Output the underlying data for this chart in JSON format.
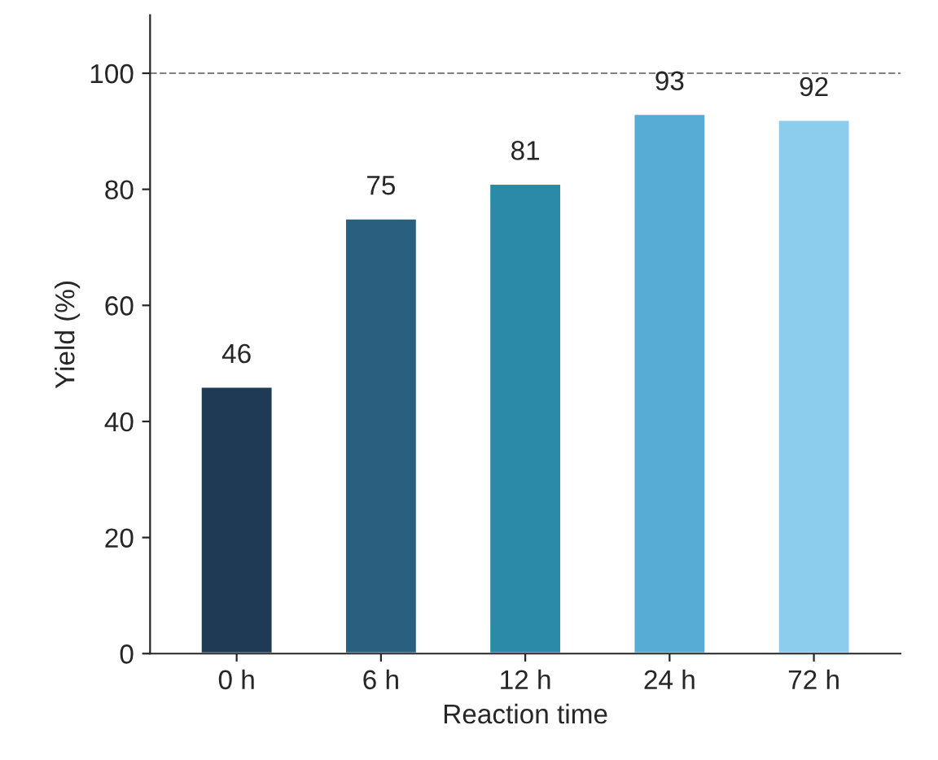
{
  "chart_data": {
    "type": "bar",
    "xlabel": "Reaction time",
    "ylabel": "Yield (%)",
    "categories": [
      "0 h",
      "6 h",
      "12 h",
      "24 h",
      "72 h"
    ],
    "values": [
      46,
      75,
      81,
      93,
      92
    ],
    "colors": [
      "#1f3a55",
      "#2a5f80",
      "#2a8aa8",
      "#56acd4",
      "#8cccec"
    ],
    "data_labels": true,
    "ylim": [
      0,
      110
    ],
    "yticks": [
      0,
      20,
      40,
      60,
      80,
      100
    ],
    "ref_lines": [
      {
        "axis": "y",
        "value": 100,
        "color": "#808080",
        "line_style": "dashed"
      }
    ],
    "grid": false,
    "legend": false
  }
}
